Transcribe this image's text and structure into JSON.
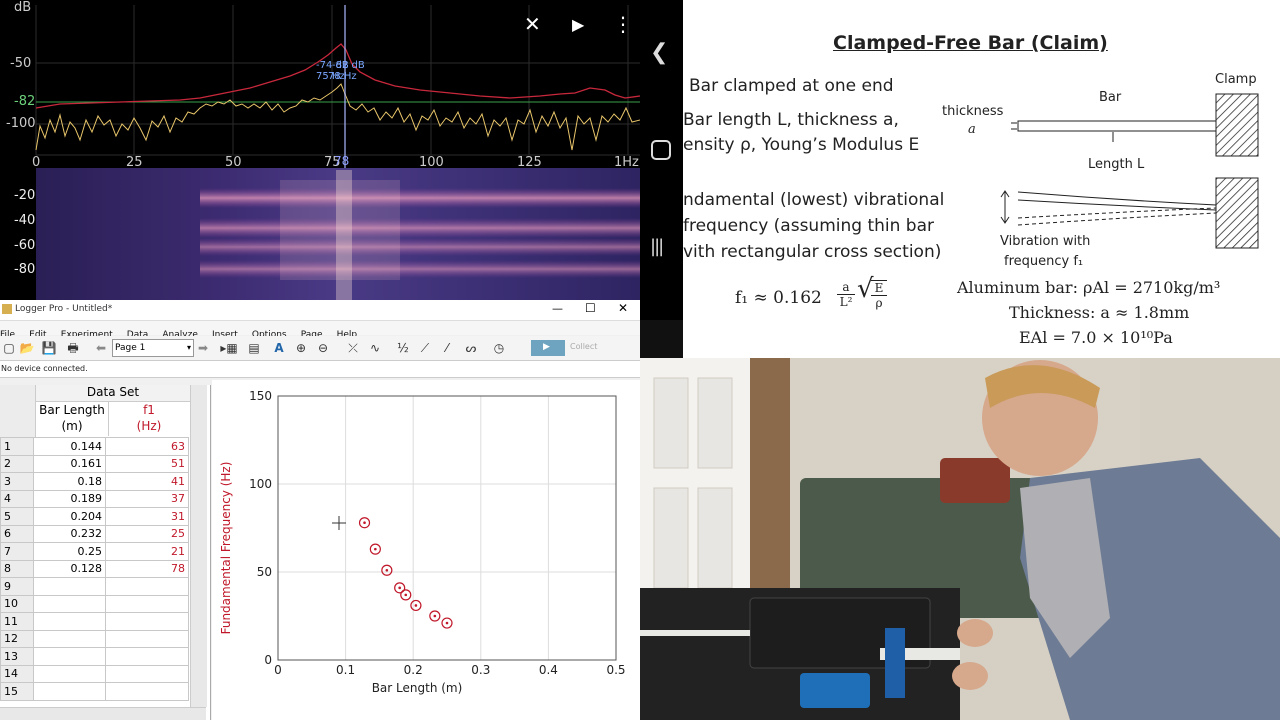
{
  "spectrum": {
    "ylabel_unit": "dB",
    "y_ticks": [
      "-50",
      "-82",
      "-100"
    ],
    "x_ticks": [
      "0",
      "25",
      "50",
      "75",
      "100",
      "125",
      "1Hz"
    ],
    "cursor_x_label": "78",
    "cursor_readout": [
      "-74 dB",
      "75 Hz",
      "-82 dB",
      "78 Hz"
    ],
    "spectrogram_ticks": [
      "-20",
      "-40",
      "-60",
      "-80"
    ],
    "colors": {
      "red_trace": "#c8283c",
      "yellow_trace": "#e8c56a",
      "threshold_line": "#3aa04a",
      "cursor": "#aab7ff"
    }
  },
  "phone_nav": {
    "back_icon": "chevron-left",
    "home_icon": "circle",
    "recents_icon": "bars"
  },
  "slide": {
    "title": "Clamped-Free Bar (Claim)",
    "bullet1": "Bar clamped at one end",
    "bullet2_line1": "Bar length L, thickness a,",
    "bullet2_line2": "ensity ρ, Young’s Modulus E",
    "bullet3_line1": "ndamental (lowest) vibrational",
    "bullet3_line2": "frequency (assuming thin bar",
    "bullet3_line3": "vith rectangular cross section)",
    "formula_lhs": "f₁ ≈ 0.162",
    "formula_frac_num": "a",
    "formula_frac_den": "L²",
    "formula_sqrt_num": "E",
    "formula_sqrt_den": "ρ",
    "diagram": {
      "clamp": "Clamp",
      "bar": "Bar",
      "thickness": "thickness",
      "thickness_sym": "a",
      "length": "Length L",
      "vibration_1": "Vibration with",
      "vibration_2": "frequency f₁"
    },
    "density": "Aluminum bar: ρAl = 2710kg/m³",
    "thickness": "Thickness: a ≈ 1.8mm",
    "modulus": "EAl = 7.0 × 10¹⁰Pa"
  },
  "logger": {
    "title": "Logger Pro - Untitled*",
    "menu": [
      "File",
      "Edit",
      "Experiment",
      "Data",
      "Analyze",
      "Insert",
      "Options",
      "Page",
      "Help"
    ],
    "page_select": "Page 1",
    "collect": "Collect",
    "status": "No device connected.",
    "dataset_title": "Data Set",
    "col1_name": "Bar Length",
    "col1_unit": "(m)",
    "col2_name": "f1",
    "col2_unit": "(Hz)",
    "rows": [
      {
        "n": "1",
        "len": "0.144",
        "f": "63"
      },
      {
        "n": "2",
        "len": "0.161",
        "f": "51"
      },
      {
        "n": "3",
        "len": "0.18",
        "f": "41"
      },
      {
        "n": "4",
        "len": "0.189",
        "f": "37"
      },
      {
        "n": "5",
        "len": "0.204",
        "f": "31"
      },
      {
        "n": "6",
        "len": "0.232",
        "f": "25"
      },
      {
        "n": "7",
        "len": "0.25",
        "f": "21"
      },
      {
        "n": "8",
        "len": "0.128",
        "f": "78"
      },
      {
        "n": "9",
        "len": "",
        "f": ""
      },
      {
        "n": "10",
        "len": "",
        "f": ""
      },
      {
        "n": "11",
        "len": "",
        "f": ""
      },
      {
        "n": "12",
        "len": "",
        "f": ""
      },
      {
        "n": "13",
        "len": "",
        "f": ""
      },
      {
        "n": "14",
        "len": "",
        "f": ""
      },
      {
        "n": "15",
        "len": "",
        "f": ""
      }
    ]
  },
  "chart_data": {
    "type": "scatter",
    "xlabel": "Bar Length (m)",
    "ylabel": "Fundamental Frequency (Hz)",
    "xlim": [
      0,
      0.5
    ],
    "ylim": [
      0,
      150
    ],
    "x_ticks": [
      "0",
      "0.1",
      "0.2",
      "0.3",
      "0.4",
      "0.5"
    ],
    "y_ticks": [
      "0",
      "50",
      "100",
      "150"
    ],
    "grid": true,
    "marker_color": "#c0182a",
    "x": [
      0.144,
      0.161,
      0.18,
      0.189,
      0.204,
      0.232,
      0.25,
      0.128
    ],
    "y": [
      63,
      51,
      41,
      37,
      31,
      25,
      21,
      78
    ]
  }
}
